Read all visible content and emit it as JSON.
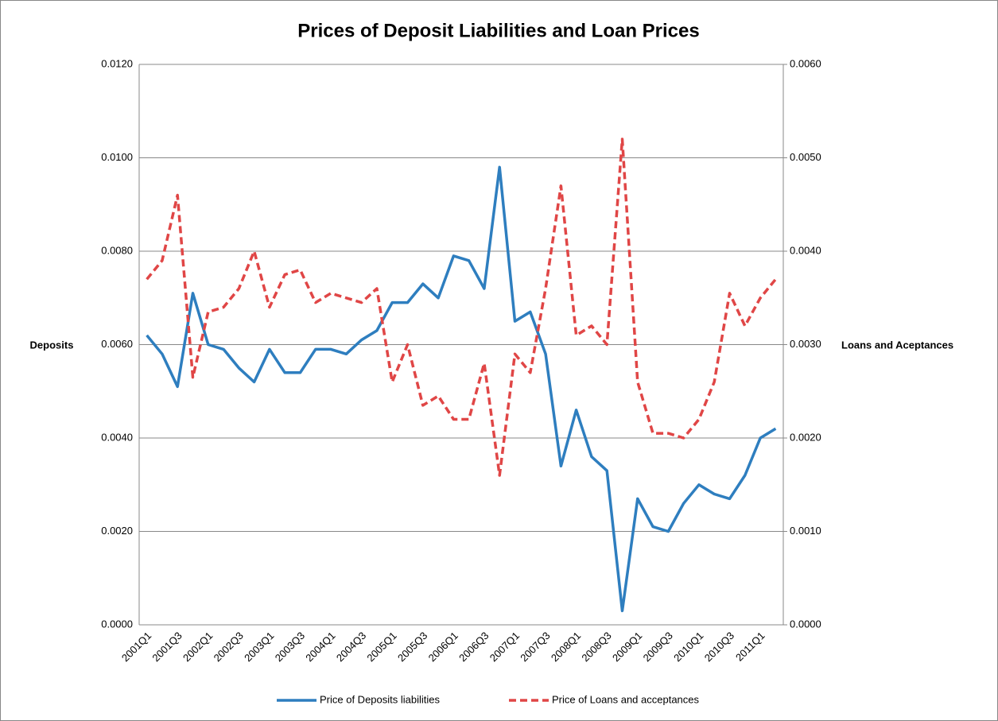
{
  "chart_data": {
    "type": "line",
    "title": "Prices of Deposit Liabilities and Loan Prices",
    "y_label": "Deposits",
    "y2_label": "Loans and Aceptances",
    "categories": [
      "2001Q1",
      null,
      "2001Q3",
      null,
      "2002Q1",
      null,
      "2002Q3",
      null,
      "2003Q1",
      null,
      "2003Q3",
      null,
      "2004Q1",
      null,
      "2004Q3",
      null,
      "2005Q1",
      null,
      "2005Q3",
      null,
      "2006Q1",
      null,
      "2006Q3",
      null,
      "2007Q1",
      null,
      "2007Q3",
      null,
      "2008Q1",
      null,
      "2008Q3",
      null,
      "2009Q1",
      null,
      "2009Q3",
      null,
      "2010Q1",
      null,
      "2010Q3",
      null,
      "2011Q1",
      null
    ],
    "series": [
      {
        "name": "Price of Deposits liabilities",
        "color": "#2e7ebf",
        "dash": false,
        "values": [
          0.0062,
          0.0058,
          0.0051,
          0.0071,
          0.006,
          0.0059,
          0.0055,
          0.0052,
          0.0059,
          0.0054,
          0.0054,
          0.0059,
          0.0059,
          0.0058,
          0.0061,
          0.0063,
          0.0069,
          0.0069,
          0.0073,
          0.007,
          0.0079,
          0.0078,
          0.0072,
          0.0098,
          0.0065,
          0.0067,
          0.0058,
          0.0034,
          0.0046,
          0.0036,
          0.0033,
          0.0003,
          0.0027,
          0.0021,
          0.002,
          0.0026,
          0.003,
          0.0028,
          0.0027,
          0.0032,
          0.004,
          0.0042
        ]
      },
      {
        "name": "Price of Loans and acceptances",
        "color": "#e04646",
        "dash": true,
        "axis": "y2",
        "values": [
          0.0037,
          0.0039,
          0.0046,
          0.00265,
          0.00335,
          0.0034,
          0.0036,
          0.004,
          0.0034,
          0.00375,
          0.0038,
          0.00345,
          0.00355,
          0.0035,
          0.00345,
          0.0036,
          0.0026,
          0.003,
          0.00235,
          0.00245,
          0.0022,
          0.0022,
          0.0028,
          0.0016,
          0.0029,
          0.0027,
          0.0036,
          0.0047,
          0.0031,
          0.0032,
          0.003,
          0.0052,
          0.0026,
          0.00205,
          0.00205,
          0.002,
          0.0022,
          0.0026,
          0.00355,
          0.0032,
          0.0035,
          0.0037
        ]
      }
    ],
    "ylim": [
      0,
      0.012
    ],
    "yticks": [
      {
        "value": 0,
        "label": "0.0000"
      },
      {
        "value": 0.002,
        "label": "0.0020"
      },
      {
        "value": 0.004,
        "label": "0.0040"
      },
      {
        "value": 0.006,
        "label": "0.0060"
      },
      {
        "value": 0.008,
        "label": "0.0080"
      },
      {
        "value": 0.01,
        "label": "0.0100"
      },
      {
        "value": 0.012,
        "label": "0.0120"
      }
    ],
    "y2lim": [
      0,
      0.006
    ],
    "y2ticks": [
      {
        "value": 0,
        "label": "0.0000"
      },
      {
        "value": 0.001,
        "label": "0.0010"
      },
      {
        "value": 0.002,
        "label": "0.0020"
      },
      {
        "value": 0.003,
        "label": "0.0030"
      },
      {
        "value": 0.004,
        "label": "0.0040"
      },
      {
        "value": 0.005,
        "label": "0.0050"
      },
      {
        "value": 0.006,
        "label": "0.0060"
      }
    ],
    "grid": true,
    "legend": "bottom"
  }
}
